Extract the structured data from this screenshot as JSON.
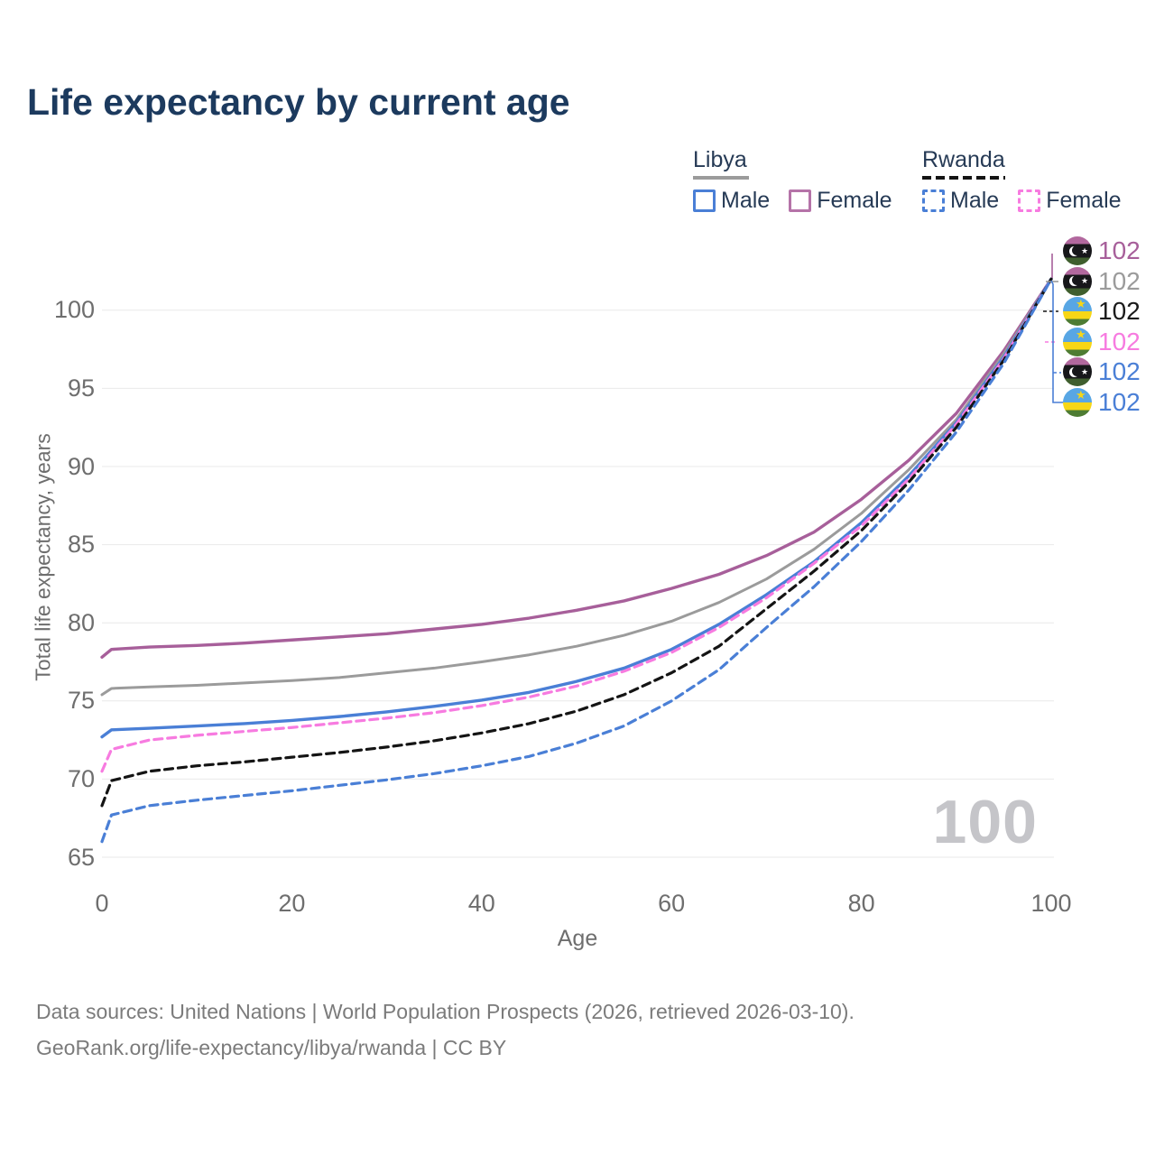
{
  "title": "Life expectancy by current age",
  "legend": {
    "groups": [
      {
        "country": "Libya",
        "line_style": "solid",
        "items": [
          {
            "label": "Male",
            "color": "#4a7fd6",
            "dashed": false
          },
          {
            "label": "Female",
            "color": "#b573a8",
            "dashed": false
          }
        ]
      },
      {
        "country": "Rwanda",
        "line_style": "dashed",
        "items": [
          {
            "label": "Male",
            "color": "#4a7fd6",
            "dashed": true
          },
          {
            "label": "Female",
            "color": "#f77be0",
            "dashed": true
          }
        ]
      }
    ]
  },
  "chart_data": {
    "type": "line",
    "title": "Life expectancy by current age",
    "xlabel": "Age",
    "ylabel": "Total life expectancy, years",
    "xlim": [
      0,
      100
    ],
    "ylim": [
      63.5,
      103
    ],
    "grid": "horizontal",
    "x_ticks": [
      0,
      20,
      40,
      60,
      80,
      100
    ],
    "y_ticks": [
      65,
      70,
      75,
      80,
      85,
      90,
      95,
      100
    ],
    "age_counter": "100",
    "x": [
      0,
      1,
      5,
      10,
      15,
      20,
      25,
      30,
      35,
      40,
      45,
      50,
      55,
      60,
      65,
      70,
      75,
      80,
      85,
      90,
      95,
      100
    ],
    "series": [
      {
        "name": "Libya Female",
        "color": "#a75f9a",
        "dashed": false,
        "width": 3.4,
        "values": [
          77.8,
          78.3,
          78.45,
          78.55,
          78.7,
          78.9,
          79.1,
          79.3,
          79.6,
          79.9,
          80.3,
          80.8,
          81.4,
          82.2,
          83.1,
          84.3,
          85.8,
          87.9,
          90.4,
          93.4,
          97.4,
          102
        ]
      },
      {
        "name": "Libya Total",
        "color": "#9b9b9b",
        "dashed": false,
        "width": 3.0,
        "values": [
          75.4,
          75.8,
          75.9,
          76.0,
          76.15,
          76.3,
          76.5,
          76.8,
          77.1,
          77.5,
          77.95,
          78.5,
          79.2,
          80.1,
          81.3,
          82.8,
          84.7,
          87.0,
          89.8,
          93.0,
          97.2,
          102
        ]
      },
      {
        "name": "Libya Male",
        "color": "#4a7fd6",
        "dashed": false,
        "width": 3.4,
        "values": [
          72.7,
          73.15,
          73.25,
          73.4,
          73.55,
          73.75,
          74.0,
          74.3,
          74.65,
          75.05,
          75.55,
          76.25,
          77.1,
          78.3,
          79.9,
          81.8,
          83.9,
          86.4,
          89.4,
          92.8,
          97.0,
          102
        ]
      },
      {
        "name": "Rwanda Female",
        "color": "#f77be0",
        "dashed": true,
        "width": 3.2,
        "values": [
          70.5,
          71.9,
          72.5,
          72.8,
          73.05,
          73.3,
          73.6,
          73.9,
          74.25,
          74.7,
          75.25,
          75.95,
          76.9,
          78.1,
          79.7,
          81.6,
          83.8,
          86.2,
          89.2,
          92.7,
          96.9,
          102
        ]
      },
      {
        "name": "Rwanda Total",
        "color": "#141414",
        "dashed": true,
        "width": 3.2,
        "values": [
          68.3,
          69.9,
          70.5,
          70.85,
          71.1,
          71.4,
          71.7,
          72.05,
          72.45,
          72.95,
          73.55,
          74.35,
          75.4,
          76.8,
          78.5,
          80.9,
          83.3,
          85.9,
          89.0,
          92.5,
          96.8,
          102
        ]
      },
      {
        "name": "Rwanda Male",
        "color": "#4a7fd6",
        "dashed": true,
        "width": 3.2,
        "values": [
          66.0,
          67.7,
          68.3,
          68.65,
          68.95,
          69.25,
          69.6,
          69.95,
          70.35,
          70.85,
          71.45,
          72.3,
          73.4,
          75.0,
          77.0,
          79.7,
          82.3,
          85.2,
          88.5,
          92.2,
          96.6,
          102
        ]
      }
    ],
    "end_labels": [
      {
        "country": "libya",
        "series": "Libya Female",
        "value": "102",
        "color": "#a75f9a"
      },
      {
        "country": "libya",
        "series": "Libya Total",
        "value": "102",
        "color": "#9b9b9b"
      },
      {
        "country": "rwanda",
        "series": "Rwanda Total",
        "value": "102",
        "color": "#1a1a1a"
      },
      {
        "country": "rwanda",
        "series": "Rwanda Female",
        "value": "102",
        "color": "#f77be0"
      },
      {
        "country": "libya",
        "series": "Libya Male",
        "value": "102",
        "color": "#4a7fd6"
      },
      {
        "country": "rwanda",
        "series": "Rwanda Male",
        "value": "102",
        "color": "#4a7fd6"
      }
    ],
    "legend_position": "top-right"
  },
  "footer": {
    "line1": "Data sources: United Nations | World Population Prospects (2026, retrieved 2026-03-10).",
    "line2": "GeoRank.org/life-expectancy/libya/rwanda | CC BY"
  }
}
